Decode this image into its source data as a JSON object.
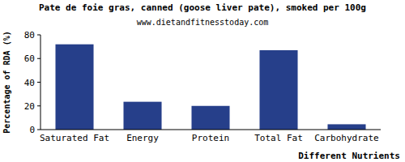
{
  "chart_data": {
    "type": "bar",
    "title": "Pate de foie gras, canned (goose liver pate), smoked per 100g",
    "subtitle": "www.dietandfitnesstoday.com",
    "x_label": "Different Nutrients",
    "y_label": "Percentage of RDA (%)",
    "categories": [
      "Saturated Fat",
      "Energy",
      "Protein",
      "Total Fat",
      "Carbohydrate"
    ],
    "values": [
      72,
      23.5,
      20,
      67,
      4.5
    ],
    "color": "#263f8a",
    "ylim": [
      0,
      80
    ],
    "yticks": [
      0,
      20,
      40,
      60,
      80
    ],
    "grid": false
  }
}
